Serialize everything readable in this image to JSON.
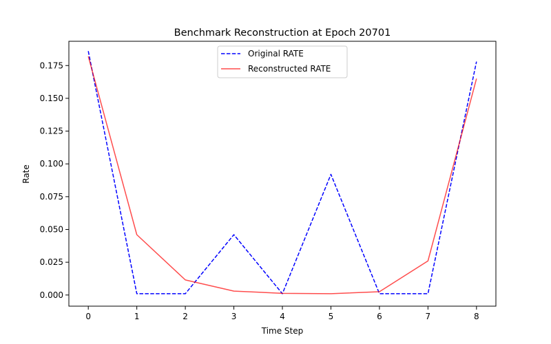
{
  "chart_data": {
    "type": "line",
    "title": "Benchmark Reconstruction at Epoch 20701",
    "xlabel": "Time Step",
    "ylabel": "Rate",
    "x": [
      0,
      1,
      2,
      3,
      4,
      5,
      6,
      7,
      8
    ],
    "xlim": [
      -0.4,
      8.4
    ],
    "ylim": [
      -0.0085,
      0.1935
    ],
    "xticks": [
      "0",
      "1",
      "2",
      "3",
      "4",
      "5",
      "6",
      "7",
      "8"
    ],
    "yticks": [
      "0.000",
      "0.025",
      "0.050",
      "0.075",
      "0.100",
      "0.125",
      "0.150",
      "0.175"
    ],
    "grid": false,
    "legend_position": "upper-center",
    "series": [
      {
        "name": "Original RATE",
        "color": "#0000ff",
        "style": "dashed",
        "values": [
          0.186,
          0.001,
          0.001,
          0.046,
          0.001,
          0.092,
          0.001,
          0.001,
          0.178
        ]
      },
      {
        "name": "Reconstructed RATE",
        "color": "#ff0000",
        "style": "solid",
        "opacity": 0.7,
        "values": [
          0.182,
          0.046,
          0.0115,
          0.003,
          0.0013,
          0.001,
          0.0025,
          0.026,
          0.165
        ]
      }
    ]
  }
}
